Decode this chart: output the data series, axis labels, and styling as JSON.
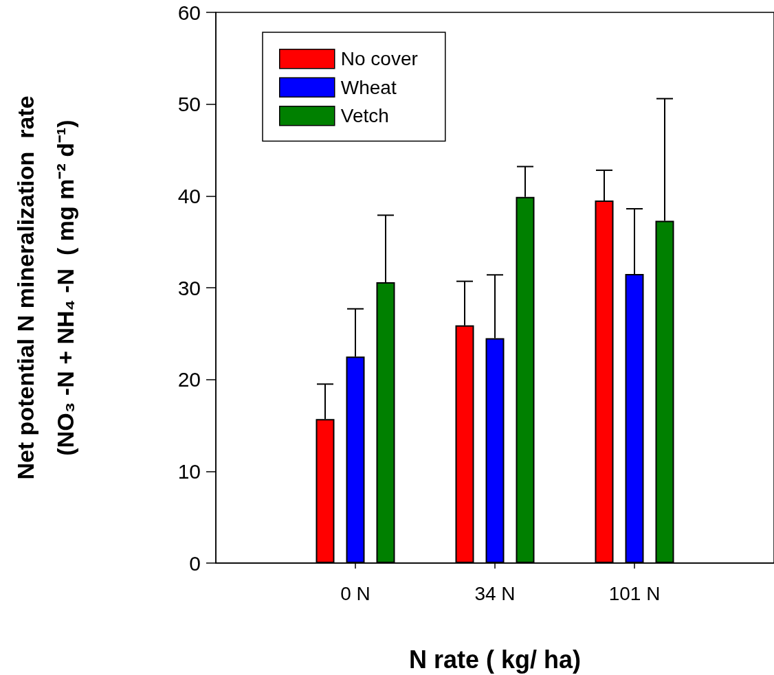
{
  "chart_data": {
    "type": "bar",
    "xlabel": "N rate ( kg/ ha)",
    "ylabel": "Net potential N mineralization  rate\n(NO₃ -N + NH₄ -N  ( mg m⁻² d⁻¹)",
    "categories": [
      "0 N",
      "34 N",
      "101 N"
    ],
    "series": [
      {
        "name": "No cover",
        "color": "#ff0000",
        "values": [
          15.7,
          25.9,
          39.5
        ],
        "errors": [
          [
            15.7,
            19.5
          ],
          [
            25.9,
            30.7
          ],
          [
            39.5,
            42.8
          ]
        ]
      },
      {
        "name": "Wheat",
        "color": "#0000ff",
        "values": [
          22.5,
          24.5,
          31.5
        ],
        "errors": [
          [
            22.5,
            27.7
          ],
          [
            24.5,
            31.4
          ],
          [
            31.5,
            38.6
          ]
        ]
      },
      {
        "name": "Vetch",
        "color": "#008000",
        "values": [
          30.6,
          39.9,
          37.3
        ],
        "errors": [
          [
            30.6,
            37.9
          ],
          [
            39.9,
            43.2
          ],
          [
            37.3,
            50.6
          ]
        ]
      }
    ],
    "ylim": [
      0,
      60
    ],
    "yticks": [
      0,
      10,
      20,
      30,
      40,
      50,
      60
    ],
    "grid": false,
    "legend": "top left"
  }
}
